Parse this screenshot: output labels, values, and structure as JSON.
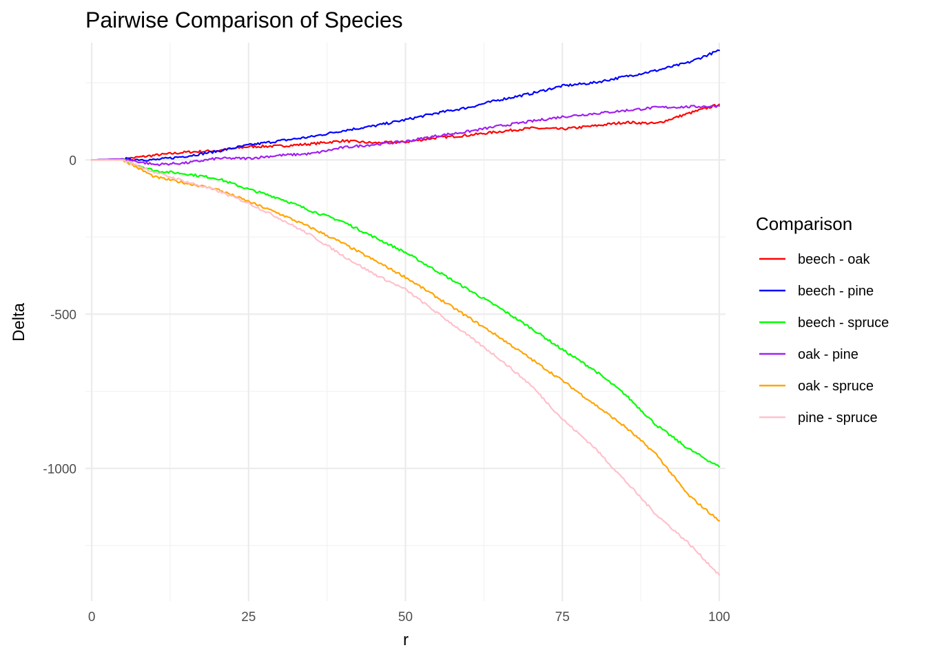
{
  "chart_data": {
    "type": "line",
    "title": "Pairwise Comparison of Species",
    "xlabel": "r",
    "ylabel": "Delta",
    "xlim": [
      -1,
      101
    ],
    "ylim": [
      -1430,
      380
    ],
    "x_ticks": [
      0,
      25,
      50,
      75,
      100
    ],
    "y_ticks": [
      0,
      -500,
      -1000
    ],
    "x_minor": [
      12.5,
      37.5,
      62.5,
      87.5
    ],
    "y_minor": [
      250,
      -250,
      -750,
      -1250
    ],
    "grid": true,
    "legend": {
      "title": "Comparison",
      "position": "right"
    },
    "x": [
      0,
      5,
      10,
      15,
      20,
      25,
      30,
      35,
      40,
      45,
      50,
      55,
      60,
      65,
      70,
      75,
      80,
      85,
      90,
      95,
      100
    ],
    "series": [
      {
        "name": "beech - oak",
        "color": "#ff0000",
        "values": [
          0,
          3,
          15,
          25,
          30,
          43,
          45,
          52,
          62,
          55,
          58,
          72,
          80,
          92,
          103,
          100,
          110,
          122,
          118,
          150,
          180
        ]
      },
      {
        "name": "beech - pine",
        "color": "#0000ff",
        "values": [
          0,
          3,
          0,
          12,
          28,
          48,
          62,
          75,
          95,
          110,
          130,
          152,
          170,
          195,
          215,
          240,
          250,
          270,
          290,
          315,
          355
        ]
      },
      {
        "name": "beech - spruce",
        "color": "#00ff00",
        "values": [
          0,
          0,
          -35,
          -45,
          -60,
          -95,
          -125,
          -165,
          -200,
          -250,
          -300,
          -360,
          -420,
          -480,
          -545,
          -615,
          -680,
          -760,
          -860,
          -935,
          -995
        ]
      },
      {
        "name": "oak - pine",
        "color": "#a020f0",
        "values": [
          0,
          3,
          -15,
          -10,
          5,
          5,
          15,
          20,
          40,
          50,
          60,
          78,
          92,
          110,
          125,
          140,
          150,
          160,
          170,
          172,
          175
        ]
      },
      {
        "name": "oak - spruce",
        "color": "#ffa500",
        "values": [
          0,
          0,
          -55,
          -75,
          -95,
          -135,
          -175,
          -220,
          -270,
          -325,
          -380,
          -445,
          -510,
          -575,
          -645,
          -715,
          -790,
          -865,
          -955,
          -1085,
          -1170
        ]
      },
      {
        "name": "pine - spruce",
        "color": "#ffc0cb",
        "values": [
          0,
          0,
          -40,
          -70,
          -100,
          -140,
          -190,
          -245,
          -310,
          -370,
          -420,
          -495,
          -570,
          -645,
          -730,
          -840,
          -930,
          -1040,
          -1150,
          -1240,
          -1345
        ]
      }
    ]
  }
}
